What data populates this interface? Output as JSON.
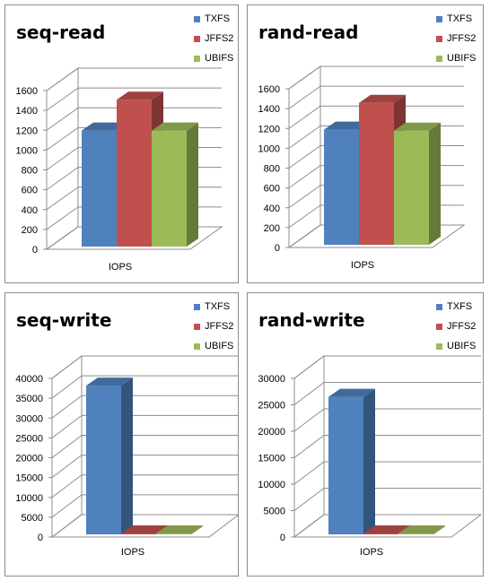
{
  "chart_data": [
    {
      "type": "bar",
      "title": "seq-read",
      "categories": [
        "IOPS"
      ],
      "series": [
        {
          "name": "TXFS",
          "values": [
            1170
          ]
        },
        {
          "name": "JFFS2",
          "values": [
            1480
          ]
        },
        {
          "name": "UBIFS",
          "values": [
            1170
          ]
        }
      ],
      "yticks": [
        "0",
        "200",
        "400",
        "600",
        "800",
        "1000",
        "1200",
        "1400",
        "1600"
      ],
      "ylim": [
        0,
        1600
      ],
      "grid": true,
      "legend": "top-right",
      "projection": "3d"
    },
    {
      "type": "bar",
      "title": "rand-read",
      "categories": [
        "IOPS"
      ],
      "series": [
        {
          "name": "TXFS",
          "values": [
            1160
          ]
        },
        {
          "name": "JFFS2",
          "values": [
            1430
          ]
        },
        {
          "name": "UBIFS",
          "values": [
            1150
          ]
        }
      ],
      "yticks": [
        "0",
        "200",
        "400",
        "600",
        "800",
        "1000",
        "1200",
        "1400",
        "1600"
      ],
      "ylim": [
        0,
        1600
      ],
      "grid": true,
      "legend": "top-right",
      "projection": "3d"
    },
    {
      "type": "bar",
      "title": "seq-write",
      "categories": [
        "IOPS"
      ],
      "series": [
        {
          "name": "TXFS",
          "values": [
            37500
          ]
        },
        {
          "name": "JFFS2",
          "values": [
            120
          ]
        },
        {
          "name": "UBIFS",
          "values": [
            80
          ]
        }
      ],
      "yticks": [
        "0",
        "5000",
        "10000",
        "15000",
        "20000",
        "25000",
        "30000",
        "35000",
        "40000"
      ],
      "ylim": [
        0,
        40000
      ],
      "grid": true,
      "legend": "top-right",
      "projection": "3d"
    },
    {
      "type": "bar",
      "title": "rand-write",
      "categories": [
        "IOPS"
      ],
      "series": [
        {
          "name": "TXFS",
          "values": [
            26000
          ]
        },
        {
          "name": "JFFS2",
          "values": [
            100
          ]
        },
        {
          "name": "UBIFS",
          "values": [
            60
          ]
        }
      ],
      "yticks": [
        "0",
        "5000",
        "10000",
        "15000",
        "20000",
        "25000",
        "30000"
      ],
      "ylim": [
        0,
        30000
      ],
      "grid": true,
      "legend": "top-right",
      "projection": "3d"
    }
  ],
  "colors": {
    "TXFS": "#4f81bd",
    "JFFS2": "#c0504d",
    "UBIFS": "#9bbb59"
  }
}
